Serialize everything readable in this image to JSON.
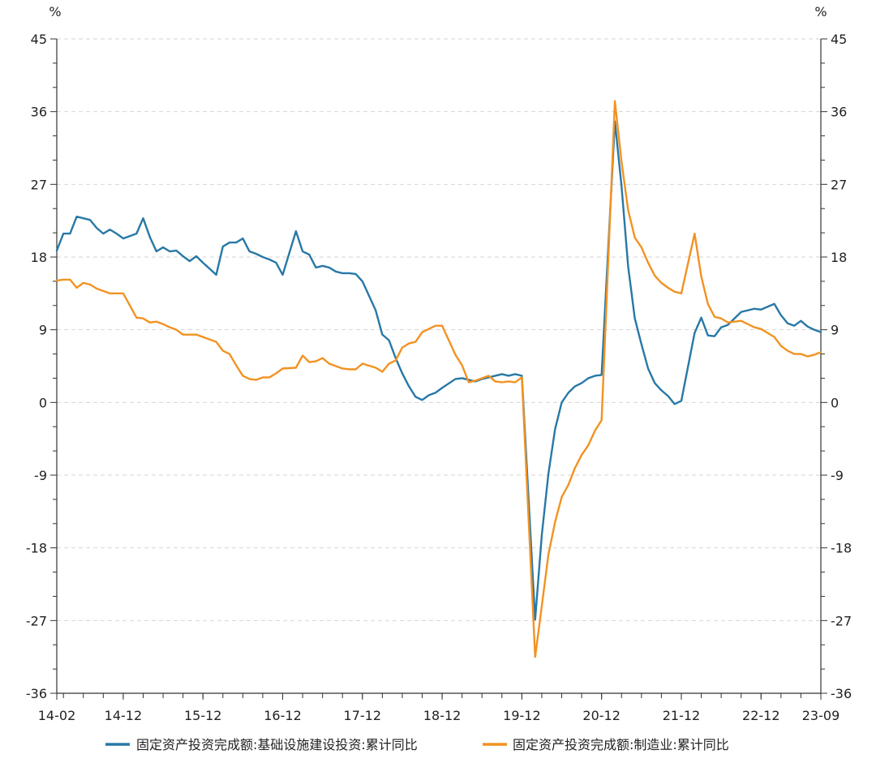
{
  "chart_data": {
    "type": "line",
    "yunit": "%",
    "ylim": [
      -36,
      45
    ],
    "yticks": [
      45,
      36,
      27,
      18,
      9,
      0,
      -9,
      -18,
      -27,
      -36
    ],
    "xlim": [
      "14-02",
      "23-09"
    ],
    "xticks": [
      "14-02",
      "14-12",
      "15-12",
      "16-12",
      "17-12",
      "18-12",
      "19-12",
      "20-12",
      "21-12",
      "22-12",
      "23-09"
    ],
    "grid": true,
    "legend": "bottom",
    "x": [
      "14-02",
      "14-03",
      "14-04",
      "14-05",
      "14-06",
      "14-07",
      "14-08",
      "14-09",
      "14-10",
      "14-11",
      "14-12",
      "15-02",
      "15-03",
      "15-04",
      "15-05",
      "15-06",
      "15-07",
      "15-08",
      "15-09",
      "15-10",
      "15-11",
      "15-12",
      "16-02",
      "16-03",
      "16-04",
      "16-05",
      "16-06",
      "16-07",
      "16-08",
      "16-09",
      "16-10",
      "16-11",
      "16-12",
      "17-02",
      "17-03",
      "17-04",
      "17-05",
      "17-06",
      "17-07",
      "17-08",
      "17-09",
      "17-10",
      "17-11",
      "17-12",
      "18-02",
      "18-03",
      "18-04",
      "18-05",
      "18-06",
      "18-07",
      "18-08",
      "18-09",
      "18-10",
      "18-11",
      "18-12",
      "19-02",
      "19-03",
      "19-04",
      "19-05",
      "19-06",
      "19-07",
      "19-08",
      "19-09",
      "19-10",
      "19-11",
      "19-12",
      "20-02",
      "20-03",
      "20-04",
      "20-05",
      "20-06",
      "20-07",
      "20-08",
      "20-09",
      "20-10",
      "20-11",
      "20-12",
      "21-02",
      "21-03",
      "21-04",
      "21-05",
      "21-06",
      "21-07",
      "21-08",
      "21-09",
      "21-10",
      "21-11",
      "21-12",
      "22-02",
      "22-03",
      "22-04",
      "22-05",
      "22-06",
      "22-07",
      "22-08",
      "22-09",
      "22-10",
      "22-11",
      "22-12",
      "23-02",
      "23-03",
      "23-04",
      "23-05",
      "23-06",
      "23-07",
      "23-08",
      "23-09"
    ],
    "series": [
      {
        "name": "固定资产投资完成额:基础设施建设投资:累计同比",
        "color": "#2878a6",
        "values": [
          18.8,
          20.9,
          20.9,
          23.0,
          22.8,
          22.6,
          21.6,
          20.9,
          21.4,
          20.9,
          20.3,
          20.9,
          22.8,
          20.5,
          18.7,
          19.2,
          18.7,
          18.8,
          18.1,
          17.5,
          18.1,
          17.3,
          15.8,
          19.3,
          19.8,
          19.8,
          20.3,
          18.7,
          18.4,
          18.0,
          17.7,
          17.3,
          15.8,
          21.2,
          18.7,
          18.3,
          16.7,
          16.9,
          16.7,
          16.2,
          16.0,
          16.0,
          15.9,
          15.0,
          11.4,
          8.4,
          7.7,
          5.5,
          3.6,
          2.0,
          0.7,
          0.3,
          0.9,
          1.2,
          1.8,
          2.9,
          3.0,
          2.8,
          2.6,
          2.9,
          3.1,
          3.3,
          3.5,
          3.3,
          3.5,
          3.3,
          -26.9,
          -16.4,
          -8.8,
          -3.3,
          0.0,
          1.2,
          2.0,
          2.4,
          3.0,
          3.3,
          3.4,
          34.8,
          26.8,
          16.8,
          10.4,
          7.2,
          4.2,
          2.4,
          1.5,
          0.8,
          -0.2,
          0.2,
          8.6,
          10.5,
          8.3,
          8.2,
          9.3,
          9.6,
          10.4,
          11.2,
          11.4,
          11.6,
          11.5,
          12.2,
          10.8,
          9.8,
          9.5,
          10.1,
          9.4,
          9.0,
          8.7
        ]
      },
      {
        "name": "固定资产投资完成额:制造业:累计同比",
        "color": "#f29222",
        "values": [
          15.1,
          15.2,
          15.2,
          14.2,
          14.8,
          14.6,
          14.1,
          13.8,
          13.5,
          13.5,
          13.5,
          10.5,
          10.4,
          9.9,
          10.0,
          9.7,
          9.3,
          9.0,
          8.4,
          8.4,
          8.4,
          8.1,
          7.5,
          6.4,
          6.0,
          4.6,
          3.3,
          2.9,
          2.8,
          3.1,
          3.1,
          3.6,
          4.2,
          4.3,
          5.8,
          5.0,
          5.1,
          5.5,
          4.8,
          4.5,
          4.2,
          4.1,
          4.1,
          4.8,
          4.3,
          3.8,
          4.8,
          5.2,
          6.8,
          7.3,
          7.5,
          8.7,
          9.1,
          9.5,
          9.5,
          5.9,
          4.6,
          2.5,
          2.7,
          3.0,
          3.3,
          2.6,
          2.5,
          2.6,
          2.5,
          3.1,
          -31.5,
          -25.2,
          -18.8,
          -14.8,
          -11.7,
          -10.2,
          -8.1,
          -6.5,
          -5.3,
          -3.5,
          -2.2,
          37.3,
          29.8,
          23.8,
          20.4,
          19.2,
          17.3,
          15.7,
          14.8,
          14.2,
          13.7,
          13.5,
          20.9,
          15.6,
          12.2,
          10.6,
          10.4,
          9.9,
          10.0,
          10.1,
          9.7,
          9.3,
          9.1,
          8.1,
          7.0,
          6.4,
          6.0,
          6.0,
          5.7,
          5.9,
          6.2
        ]
      }
    ]
  }
}
